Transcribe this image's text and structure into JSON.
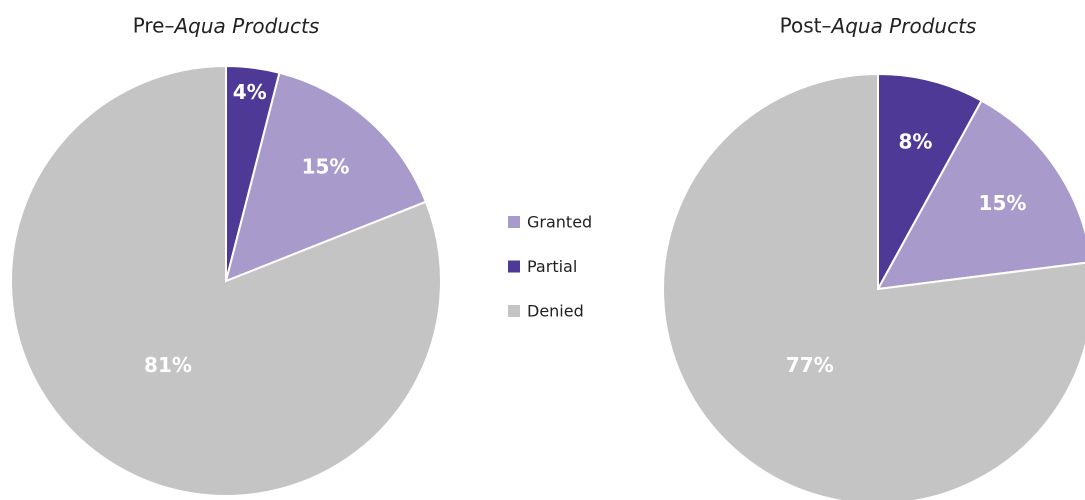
{
  "chart_data": [
    {
      "type": "pie",
      "title": "Pre–Aqua Products",
      "categories": [
        "Granted",
        "Partial",
        "Denied"
      ],
      "values": [
        15,
        4,
        81
      ],
      "value_labels": [
        "15%",
        "4%",
        "81%"
      ],
      "colors": [
        "#a89bcc",
        "#4e3a96",
        "#c4c4c4"
      ]
    },
    {
      "type": "pie",
      "title": "Post–Aqua Products",
      "categories": [
        "Granted",
        "Partial",
        "Denied"
      ],
      "values": [
        15,
        8,
        77
      ],
      "value_labels": [
        "15%",
        "8%",
        "77%"
      ],
      "colors": [
        "#a89bcc",
        "#4e3a96",
        "#c4c4c4"
      ]
    }
  ]
}
